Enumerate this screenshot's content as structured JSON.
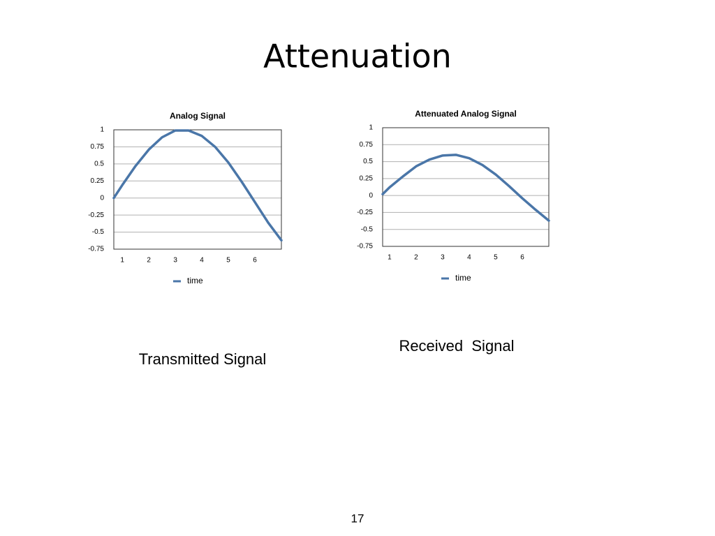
{
  "title": "Attenuation",
  "captions": [
    "Transmitted Signal",
    "Received  Signal"
  ],
  "page_number": "17",
  "chart_data": [
    {
      "type": "line",
      "title": "Analog Signal",
      "x": [
        0.68,
        1,
        1.5,
        2,
        2.5,
        3,
        3.5,
        4,
        4.5,
        5,
        5.5,
        6,
        6.5,
        7
      ],
      "series": [
        {
          "name": "time",
          "color": "#4a76a8",
          "values": [
            0,
            0.19,
            0.47,
            0.71,
            0.89,
            0.99,
            0.99,
            0.91,
            0.75,
            0.52,
            0.24,
            -0.06,
            -0.36,
            -0.62
          ]
        }
      ],
      "xlim": [
        0.68,
        7
      ],
      "xticks": [
        1,
        2,
        3,
        4,
        5,
        6
      ],
      "ylim": [
        -0.75,
        1
      ],
      "yticks": [
        -0.75,
        -0.5,
        -0.25,
        0,
        0.25,
        0.5,
        0.75,
        1
      ],
      "grid": true,
      "legend": "bottom"
    },
    {
      "type": "line",
      "title": "Attenuated Analog Signal",
      "x": [
        0.74,
        1,
        1.5,
        2,
        2.5,
        3,
        3.5,
        4,
        4.5,
        5,
        5.5,
        6,
        6.5,
        7
      ],
      "series": [
        {
          "name": "time",
          "color": "#4a76a8",
          "values": [
            0.02,
            0.12,
            0.28,
            0.43,
            0.53,
            0.59,
            0.6,
            0.55,
            0.45,
            0.31,
            0.14,
            -0.04,
            -0.21,
            -0.37
          ]
        }
      ],
      "xlim": [
        0.74,
        7
      ],
      "xticks": [
        1,
        2,
        3,
        4,
        5,
        6
      ],
      "ylim": [
        -0.75,
        1
      ],
      "yticks": [
        -0.75,
        -0.5,
        -0.25,
        0,
        0.25,
        0.5,
        0.75,
        1
      ],
      "grid": true,
      "legend": "bottom"
    }
  ]
}
